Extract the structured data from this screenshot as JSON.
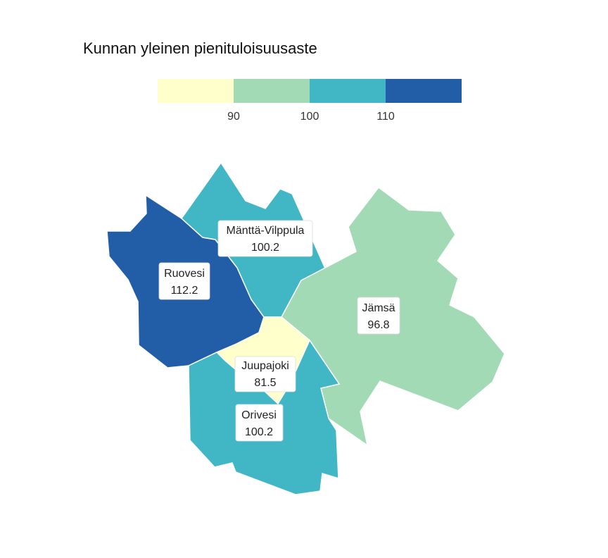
{
  "title": "Kunnan yleinen pienituloisuusaste",
  "legend": {
    "bins": [
      {
        "color": "#ffffcc"
      },
      {
        "color": "#a1dab4"
      },
      {
        "color": "#41b6c4"
      },
      {
        "color": "#225ea8"
      }
    ],
    "ticks": [
      "90",
      "100",
      "110"
    ]
  },
  "regions": [
    {
      "name": "Ruovesi",
      "value": "112.2",
      "color": "#225ea8"
    },
    {
      "name": "Mänttä-Vilppula",
      "value": "100.2",
      "color": "#41b6c4"
    },
    {
      "name": "Jämsä",
      "value": "96.8",
      "color": "#a1dab4"
    },
    {
      "name": "Juupajoki",
      "value": "81.5",
      "color": "#ffffcc"
    },
    {
      "name": "Orivesi",
      "value": "100.2",
      "color": "#41b6c4"
    }
  ]
}
